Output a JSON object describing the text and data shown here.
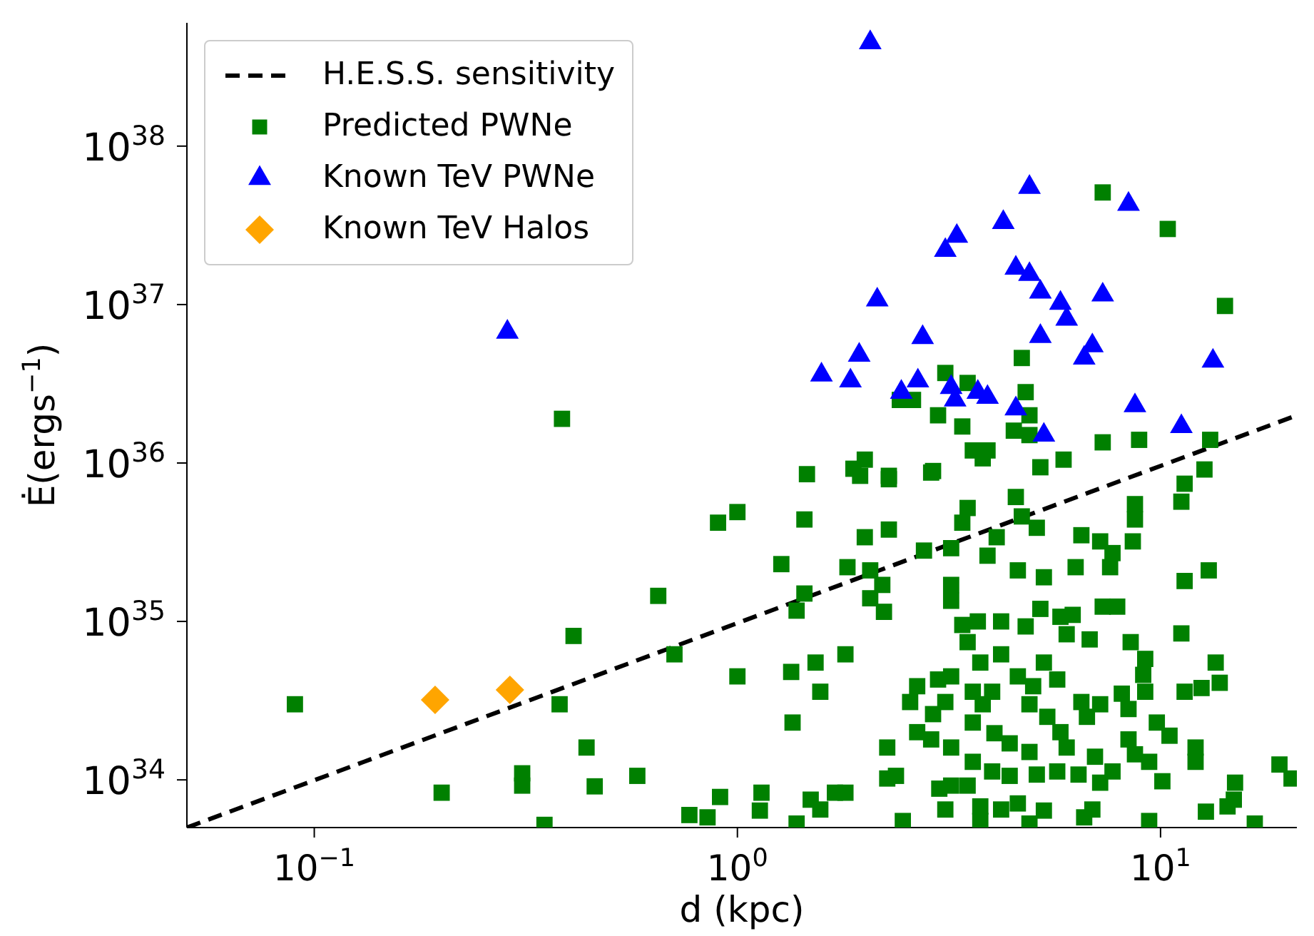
{
  "chart_data": {
    "type": "scatter",
    "xlabel": "d (kpc)",
    "ylabel": "Ė(ergs$^{−1}$)",
    "log": "xy",
    "legend": "top left",
    "xlim": [
      0.05,
      21
    ],
    "xticks": [
      {
        "value": 0.1,
        "label": "10$^{−1}$"
      },
      {
        "value": 1,
        "label": "10$^{0}$"
      },
      {
        "value": 10,
        "label": "10$^{1}$"
      }
    ],
    "ylim": [
      5e+33,
      6e+38
    ],
    "yticks": [
      {
        "value": 1e+34,
        "label": "10$^{34}$"
      },
      {
        "value": 1e+35,
        "label": "10$^{35}$"
      },
      {
        "value": 1e+36,
        "label": "10$^{36}$"
      },
      {
        "value": 1e+37,
        "label": "10$^{37}$"
      },
      {
        "value": 1e+38,
        "label": "10$^{38}$"
      }
    ],
    "series": [
      {
        "name": "H.E.S.S. sensitivity",
        "type": "line",
        "line_style": "dashed",
        "marker": "none",
        "color": "#000000",
        "x": [
          0.05,
          21
        ],
        "values": [
          5e+33,
          2e+36
        ]
      },
      {
        "name": "Predicted PWNe",
        "marker": "square",
        "color": "#008000",
        "x": [
          0.385,
          7.3,
          10.4,
          14.2,
          4.7,
          3.1,
          3.5,
          2.6,
          2.42,
          4.8,
          2.98,
          3.4,
          4.9,
          4.5,
          4.9,
          7.3,
          8.9,
          13.1,
          3.6,
          3.9,
          3.8,
          5.9,
          5.2,
          12.7,
          1.46,
          2.0,
          1.88,
          2.28,
          2.9,
          0.09,
          0.9,
          1.0,
          0.65,
          0.41,
          0.71,
          1.0,
          0.38,
          0.44,
          0.2,
          0.31,
          0.31,
          0.46,
          0.58,
          0.91,
          0.77,
          0.85,
          0.35,
          1.95,
          2.28,
          2.87,
          11.4,
          11.2,
          1.44,
          8.7,
          8.7,
          4.55,
          3.5,
          3.4,
          4.7,
          5.1,
          2.28,
          2.0,
          4.1,
          6.5,
          7.2,
          8.6,
          2.76,
          3.2,
          3.9,
          7.7,
          1.27,
          1.82,
          2.06,
          6.3,
          7.6,
          4.6,
          5.3,
          13.0,
          11.4,
          2.2,
          3.2,
          1.44,
          2.06,
          3.2,
          1.38,
          2.22,
          5.2,
          5.8,
          6.2,
          7.3,
          7.9,
          3.4,
          3.7,
          4.2,
          4.8,
          6.0,
          6.8,
          11.2,
          8.5,
          1.34,
          1.53,
          1.8,
          3.5,
          3.75,
          4.2,
          5.3,
          9.2,
          9.1,
          13.5,
          13.8,
          12.5,
          11.4,
          9.2,
          1.57,
          1.35,
          2.66,
          2.98,
          3.2,
          3.6,
          4.0,
          4.6,
          5.0,
          5.7,
          2.56,
          3.1,
          3.8,
          4.9,
          6.5,
          7.2,
          8.1,
          8.4,
          2.9,
          3.6,
          5.4,
          6.7,
          2.66,
          4.05,
          5.8,
          9.8,
          10.5,
          8.4,
          2.87,
          4.4,
          2.26,
          3.2,
          4.9,
          6.0,
          12.1,
          7.0,
          8.7,
          3.6,
          9.4,
          12.1,
          19.1,
          20.4,
          2.26,
          2.37,
          4.0,
          4.4,
          5.1,
          5.7,
          6.4,
          7.2,
          7.7,
          10.1,
          3.0,
          3.2,
          3.5,
          15.0,
          1.14,
          1.7,
          1.8,
          1.49,
          14.9,
          14.4,
          12.8,
          1.13,
          1.57,
          3.1,
          3.75,
          4.2,
          4.6,
          5.3,
          6.6,
          6.9,
          9.4,
          2.46,
          3.75,
          4.9,
          16.7,
          1.38
        ],
        "values": [
          1.9e+36,
          5.1e+37,
          3e+37,
          9.8e+36,
          4.6e+36,
          3.7e+36,
          3.2e+36,
          2.5e+36,
          2.5e+36,
          2.8e+36,
          2e+36,
          1.7e+36,
          2e+36,
          1.6e+36,
          1.5e+36,
          1.35e+36,
          1.4e+36,
          1.4e+36,
          1.2e+36,
          1.2e+36,
          1.07e+36,
          1.05e+36,
          9.4e+35,
          9.1e+35,
          8.5e+35,
          1.05e+36,
          9.2e+35,
          8.3e+35,
          8.9e+35,
          3e+34,
          4.2e+35,
          4.9e+35,
          1.45e+35,
          8.1e+34,
          6.2e+34,
          4.5e+34,
          3e+34,
          1.6e+34,
          8.3e+33,
          1.1e+34,
          9.2e+33,
          9.1e+33,
          1.06e+34,
          7.8e+33,
          6e+33,
          5.8e+33,
          5.2e+33,
          8.3e+35,
          7.9e+35,
          8.7e+35,
          7.4e+35,
          5.7e+35,
          4.4e+35,
          5.5e+35,
          4.4e+35,
          6.1e+35,
          5.2e+35,
          4.2e+35,
          4.6e+35,
          3.9e+35,
          3.8e+35,
          3.4e+35,
          3.4e+35,
          3.5e+35,
          3.2e+35,
          3.2e+35,
          2.8e+35,
          2.9e+35,
          2.6e+35,
          2.7e+35,
          2.3e+35,
          2.2e+35,
          2.1e+35,
          2.2e+35,
          2.2e+35,
          2.1e+35,
          1.9e+35,
          2.1e+35,
          1.8e+35,
          1.7e+35,
          1.7e+35,
          1.5e+35,
          1.4e+35,
          1.35e+35,
          1.17e+35,
          1.15e+35,
          1.2e+35,
          1.07e+35,
          1.1e+35,
          1.24e+35,
          1.24e+35,
          9.5e+34,
          1e+35,
          1e+35,
          9.3e+34,
          8.3e+34,
          7.7e+34,
          8.4e+34,
          7.4e+34,
          4.8e+34,
          5.5e+34,
          6.2e+34,
          7.4e+34,
          5.5e+34,
          6.2e+34,
          5.5e+34,
          5.8e+34,
          4.6e+34,
          5.5e+34,
          4.1e+34,
          3.8e+34,
          3.6e+34,
          3.6e+34,
          3.6e+34,
          2.3e+34,
          3.9e+34,
          4.3e+34,
          4.5e+34,
          3.6e+34,
          3.6e+34,
          4.5e+34,
          3.9e+34,
          4.3e+34,
          3.1e+34,
          3.1e+34,
          3e+34,
          3e+34,
          3.1e+34,
          3e+34,
          3.5e+34,
          2.8e+34,
          2.6e+34,
          2.3e+34,
          2.5e+34,
          2.5e+34,
          2e+34,
          1.97e+34,
          2e+34,
          2.3e+34,
          1.9e+34,
          1.8e+34,
          1.8e+34,
          1.7e+34,
          1.6e+34,
          1.6e+34,
          1.5e+34,
          1.6e+34,
          1.6e+34,
          1.4e+34,
          1.45e+34,
          1.3e+34,
          1.3e+34,
          1.3e+34,
          1.25e+34,
          1.02e+34,
          1.02e+34,
          1.06e+34,
          1.13e+34,
          1.06e+34,
          1.08e+34,
          1.13e+34,
          1.08e+34,
          9.6e+33,
          1.13e+34,
          9.8e+33,
          8.8e+33,
          9.2e+33,
          9.2e+33,
          9.6e+33,
          8.3e+33,
          8.3e+33,
          8.3e+33,
          7.5e+33,
          7.5e+33,
          6.8e+33,
          6.3e+33,
          6.4e+33,
          6.5e+33,
          6.5e+33,
          6.8e+33,
          6.5e+33,
          7.1e+33,
          6.4e+33,
          5.8e+33,
          6.5e+33,
          5.5e+33,
          5.5e+33,
          5.5e+33,
          5.3e+33,
          5.3e+33,
          5.3e+33
        ]
      },
      {
        "name": "Known TeV PWNe",
        "marker": "triangle",
        "color": "#0000ff",
        "x": [
          0.286,
          2.06,
          4.9,
          8.4,
          4.25,
          3.3,
          3.1,
          4.55,
          4.9,
          5.2,
          7.3,
          2.14,
          5.8,
          6.0,
          5.2,
          6.9,
          6.6,
          2.74,
          1.94,
          13.3,
          1.58,
          1.85,
          2.67,
          2.44,
          3.2,
          3.27,
          3.7,
          3.9,
          4.55,
          8.7,
          5.3,
          11.2
        ],
        "values": [
          6.7e+36,
          4.5e+38,
          5.5e+37,
          4.3e+37,
          3.3e+37,
          2.7e+37,
          2.2e+37,
          1.7e+37,
          1.55e+37,
          1.2e+37,
          1.15e+37,
          1.07e+37,
          1.02e+37,
          8.1e+36,
          6.3e+36,
          5.5e+36,
          4.6e+36,
          6.2e+36,
          4.8e+36,
          4.4e+36,
          3.6e+36,
          3.3e+36,
          3.3e+36,
          2.8e+36,
          3e+36,
          2.5e+36,
          2.8e+36,
          2.6e+36,
          2.2e+36,
          2.3e+36,
          1.5e+36,
          1.7e+36
        ]
      },
      {
        "name": "Known TeV Halos",
        "marker": "diamond",
        "color": "#ffa500",
        "x": [
          0.193,
          0.29
        ],
        "values": [
          3.2e+34,
          3.7e+34
        ]
      }
    ]
  }
}
